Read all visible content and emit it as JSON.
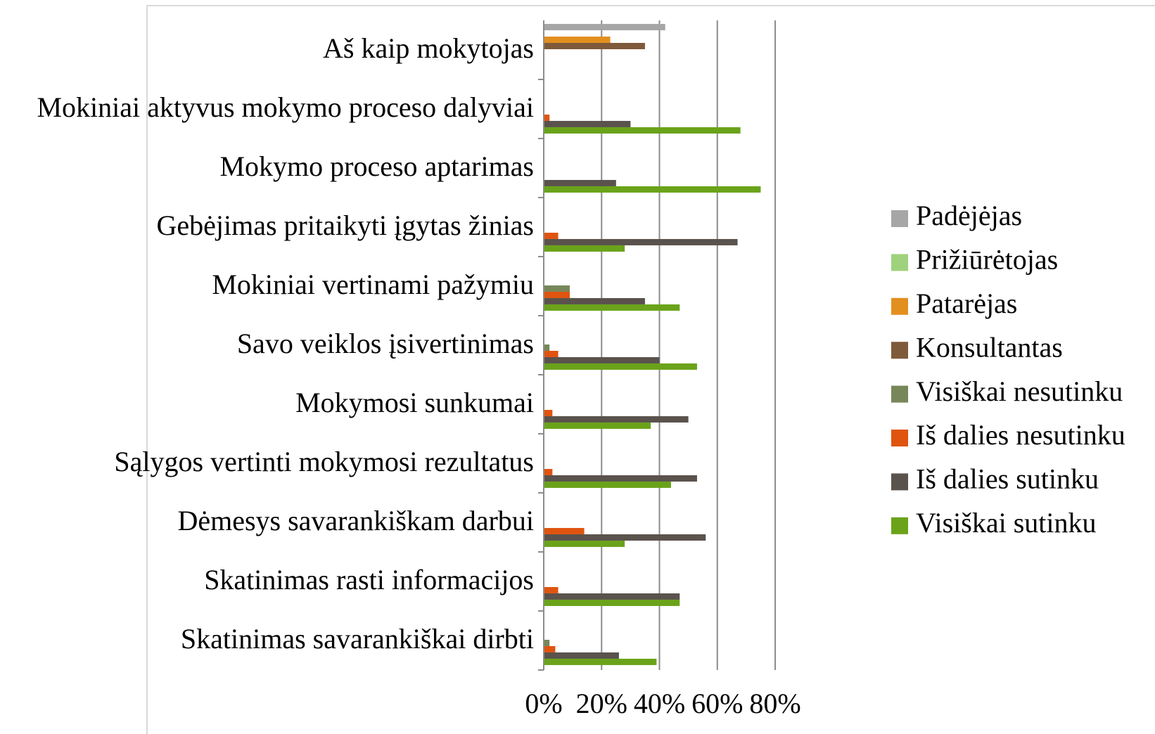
{
  "chart_data": {
    "type": "hbar",
    "categories": [
      "Aš kaip mokytojas",
      "Mokiniai aktyvus mokymo proceso dalyviai",
      "Mokymo proceso aptarimas",
      "Gebėjimas pritaikyti įgytas žinias",
      "Mokiniai vertinami pažymiu",
      "Savo veiklos įsivertinimas",
      "Mokymosi sunkumai",
      "Sąlygos vertinti mokymosi rezultatus",
      "Dėmesys savarankiškam darbui",
      "Skatinimas rasti informacijos",
      "Skatinimas savarankiškai dirbti"
    ],
    "series": [
      {
        "name": "Padėjėjas",
        "color": "#a6a6a6",
        "values": [
          42,
          0,
          0,
          0,
          0,
          0,
          0,
          0,
          0,
          0,
          0
        ]
      },
      {
        "name": "Prižiūrėtojas",
        "color": "#9fd27c",
        "values": [
          0,
          0,
          0,
          0,
          0,
          0,
          0,
          0,
          0,
          0,
          0
        ]
      },
      {
        "name": "Patarėjas",
        "color": "#e38f1f",
        "values": [
          23,
          0,
          0,
          0,
          0,
          0,
          0,
          0,
          0,
          0,
          0
        ]
      },
      {
        "name": "Konsultantas",
        "color": "#7f5a3a",
        "values": [
          35,
          0,
          0,
          0,
          0,
          0,
          0,
          0,
          0,
          0,
          0
        ]
      },
      {
        "name": "Visiškai nesutinku",
        "color": "#77875a",
        "values": [
          0,
          0,
          0,
          0,
          9,
          2,
          0,
          0,
          0,
          0,
          2
        ]
      },
      {
        "name": "Iš dalies nesutinku",
        "color": "#e0540f",
        "values": [
          0,
          2,
          0,
          5,
          9,
          5,
          3,
          3,
          14,
          5,
          4
        ]
      },
      {
        "name": "Iš dalies sutinku",
        "color": "#5a524c",
        "values": [
          0,
          30,
          25,
          67,
          35,
          40,
          50,
          53,
          56,
          47,
          26
        ]
      },
      {
        "name": "Visiškai sutinku",
        "color": "#6aa31a",
        "values": [
          0,
          68,
          75,
          28,
          47,
          53,
          37,
          44,
          28,
          47,
          39
        ]
      }
    ],
    "xlim": [
      0,
      80
    ],
    "xticks": [
      {
        "value": 0,
        "label": "0%"
      },
      {
        "value": 20,
        "label": "20%"
      },
      {
        "value": 40,
        "label": "40%"
      },
      {
        "value": 60,
        "label": "60%"
      },
      {
        "value": 80,
        "label": "80%"
      }
    ],
    "grid": true,
    "legend": "right"
  }
}
